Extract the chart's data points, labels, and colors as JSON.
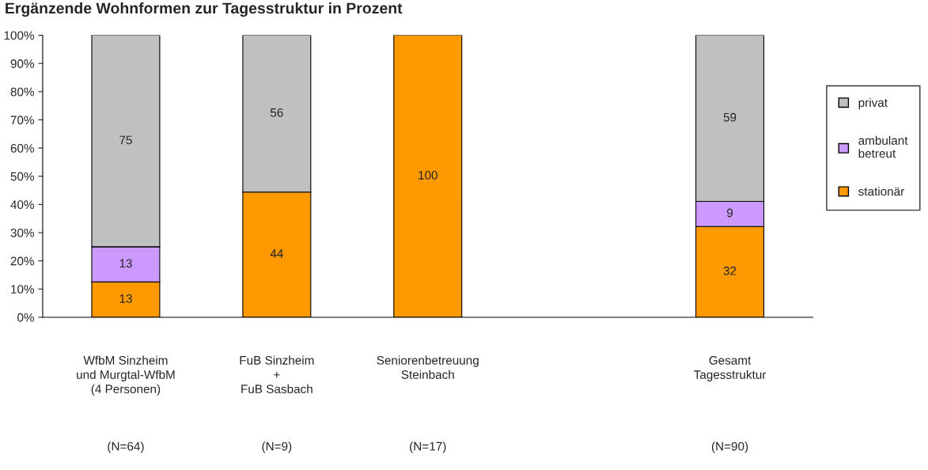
{
  "chart_data": {
    "type": "bar",
    "stacked": true,
    "title": "Ergänzende Wohnformen zur Tagesstruktur in Prozent",
    "categories": [
      "WfbM Sinzheim\nund Murgtal-WfbM\n(4 Personen)\n\n\n\n(N=64)",
      "FuB Sinzheim\n+\nFuB Sasbach\n\n\n\n(N=9)",
      "Seniorenbetreuung\nSteinbach\n\n\n\n\n(N=17)",
      null,
      "Gesamt\nTagesstruktur\n\n\n\n\n(N=90)"
    ],
    "series": [
      {
        "name": "stationär",
        "color": "#ff9900",
        "values": [
          12.5,
          44.4,
          100,
          null,
          32.2
        ],
        "value_labels": [
          "13",
          "44",
          "100",
          null,
          "32"
        ]
      },
      {
        "name": "ambulant\nbetreut",
        "color": "#cc99ff",
        "values": [
          12.5,
          null,
          null,
          null,
          8.9
        ],
        "value_labels": [
          "13",
          null,
          null,
          null,
          "9"
        ]
      },
      {
        "name": "privat",
        "color": "#c0c0c0",
        "values": [
          75,
          55.6,
          null,
          null,
          58.9
        ],
        "value_labels": [
          "75",
          "56",
          null,
          null,
          "59"
        ]
      }
    ],
    "ylim": [
      0,
      100
    ],
    "yticks": [
      {
        "value": 0,
        "label": "0%"
      },
      {
        "value": 10,
        "label": "10%"
      },
      {
        "value": 20,
        "label": "20%"
      },
      {
        "value": 30,
        "label": "30%"
      },
      {
        "value": 40,
        "label": "40%"
      },
      {
        "value": 50,
        "label": "50%"
      },
      {
        "value": 60,
        "label": "60%"
      },
      {
        "value": 70,
        "label": "70%"
      },
      {
        "value": 80,
        "label": "80%"
      },
      {
        "value": 90,
        "label": "90%"
      },
      {
        "value": 100,
        "label": "100%"
      }
    ],
    "grid": false,
    "legend": "right"
  }
}
